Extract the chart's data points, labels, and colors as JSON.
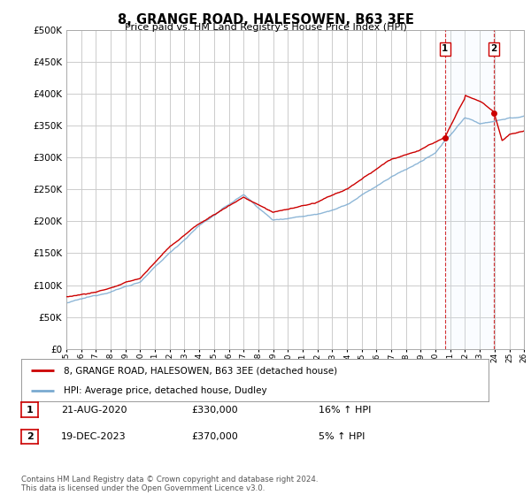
{
  "title": "8, GRANGE ROAD, HALESOWEN, B63 3EE",
  "subtitle": "Price paid vs. HM Land Registry's House Price Index (HPI)",
  "legend_label1": "8, GRANGE ROAD, HALESOWEN, B63 3EE (detached house)",
  "legend_label2": "HPI: Average price, detached house, Dudley",
  "annotation1": {
    "num": "1",
    "date": "21-AUG-2020",
    "price": "£330,000",
    "hpi": "16% ↑ HPI"
  },
  "annotation2": {
    "num": "2",
    "date": "19-DEC-2023",
    "price": "£370,000",
    "hpi": "5% ↑ HPI"
  },
  "footer": "Contains HM Land Registry data © Crown copyright and database right 2024.\nThis data is licensed under the Open Government Licence v3.0.",
  "line1_color": "#cc0000",
  "line2_color": "#7aaad0",
  "vline_color": "#cc0000",
  "bg_color": "#ffffff",
  "grid_color": "#cccccc",
  "ylim": [
    0,
    500000
  ],
  "yticks": [
    0,
    50000,
    100000,
    150000,
    200000,
    250000,
    300000,
    350000,
    400000,
    450000,
    500000
  ],
  "shade_color": "#ddeeff",
  "sale1_year": 2020.639,
  "sale2_year": 2023.956,
  "sale1_price": 330000,
  "sale2_price": 370000
}
